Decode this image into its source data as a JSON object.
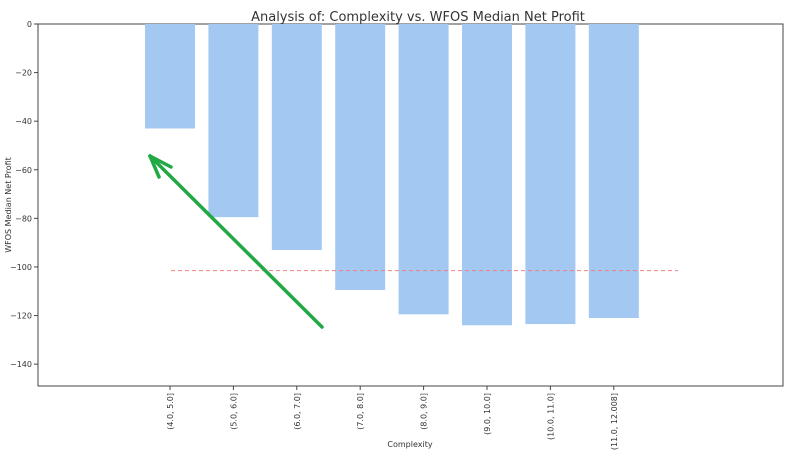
{
  "chart_data": {
    "type": "bar",
    "title": "Analysis of: Complexity vs. WFOS Median Net Profit",
    "xlabel": "Complexity",
    "ylabel": "WFOS Median Net Profit",
    "categories": [
      "(4.0, 5.0]",
      "(5.0, 6.0]",
      "(6.0, 7.0]",
      "(7.0, 8.0]",
      "(8.0, 9.0]",
      "(9.0, 10.0]",
      "(10.0, 11.0]",
      "(11.0, 12.008]"
    ],
    "values": [
      -43,
      -79.5,
      -93,
      -109.5,
      -119.5,
      -124,
      -123.5,
      -121
    ],
    "ylim": [
      -149,
      0
    ],
    "yticks": [
      0,
      -20,
      -40,
      -60,
      -80,
      -100,
      -120,
      -140
    ],
    "reference_line": {
      "value": -101.5,
      "style": "dashed",
      "color": "#f08080"
    },
    "bar_color": "#a3c8f2",
    "grid": false,
    "annotation": {
      "type": "arrow",
      "color": "#22a845"
    }
  }
}
